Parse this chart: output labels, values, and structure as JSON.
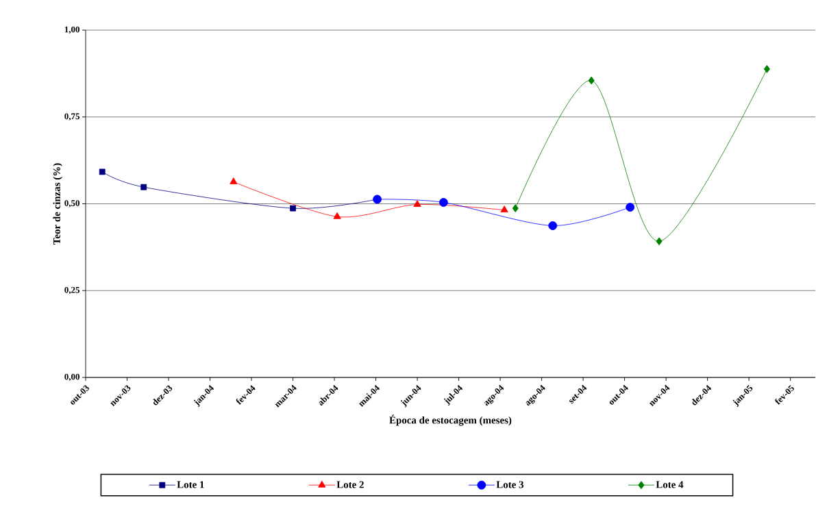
{
  "chart_data": {
    "type": "line",
    "xlabel": "Época de estocagem (meses)",
    "ylabel": "Teor de cinzas (%)",
    "xlim": [
      "2003-10-06",
      "2005-03-17"
    ],
    "xticks": [
      {
        "value": "2003-10-06",
        "label": "out-03"
      },
      {
        "value": "2003-11-05",
        "label": "nov-03"
      },
      {
        "value": "2003-12-05",
        "label": "dez-03"
      },
      {
        "value": "2004-01-04",
        "label": "jan-04"
      },
      {
        "value": "2004-02-03",
        "label": "fev-04"
      },
      {
        "value": "2004-03-04",
        "label": "mar-04"
      },
      {
        "value": "2004-04-03",
        "label": "abr-04"
      },
      {
        "value": "2004-05-03",
        "label": "mai-04"
      },
      {
        "value": "2004-06-02",
        "label": "jun-04"
      },
      {
        "value": "2004-07-02",
        "label": "jul-04"
      },
      {
        "value": "2004-08-01",
        "label": "ago-04"
      },
      {
        "value": "2004-08-31",
        "label": "ago-04"
      },
      {
        "value": "2004-09-30",
        "label": "set-04"
      },
      {
        "value": "2004-10-30",
        "label": "out-04"
      },
      {
        "value": "2004-11-29",
        "label": "nov-04"
      },
      {
        "value": "2004-12-29",
        "label": "dez-04"
      },
      {
        "value": "2005-01-28",
        "label": "jan-05"
      },
      {
        "value": "2005-02-27",
        "label": "fev-05"
      }
    ],
    "ylim": [
      0,
      1
    ],
    "yticks": [
      {
        "value": 0,
        "label": "0,00"
      },
      {
        "value": 0.25,
        "label": "0,25"
      },
      {
        "value": 0.5,
        "label": "0,50"
      },
      {
        "value": 0.75,
        "label": "0,75"
      },
      {
        "value": 1,
        "label": "1,00"
      }
    ],
    "grid": "y",
    "legend": "bottom",
    "line_style": "solid",
    "series": [
      {
        "name": "Lote 1",
        "color": "#000080",
        "marker": "square",
        "x": [
          "2003-10-18",
          "2003-11-17",
          "2004-03-04",
          "2004-05-04"
        ],
        "values": [
          0.592,
          0.548,
          0.487,
          0.513
        ]
      },
      {
        "name": "Lote 2",
        "color": "#ff0000",
        "marker": "triangle",
        "x": [
          "2004-01-21",
          "2004-04-05",
          "2004-06-02",
          "2004-08-04"
        ],
        "values": [
          0.563,
          0.463,
          0.498,
          0.482
        ]
      },
      {
        "name": "Lote 3",
        "color": "#0000ff",
        "marker": "circle",
        "x": [
          "2004-05-04",
          "2004-06-21",
          "2004-09-08",
          "2004-11-03"
        ],
        "values": [
          0.513,
          0.504,
          0.437,
          0.49
        ]
      },
      {
        "name": "Lote 4",
        "color": "#008000",
        "marker": "diamond",
        "x": [
          "2004-08-12",
          "2004-10-06",
          "2004-11-24",
          "2005-02-10"
        ],
        "values": [
          0.487,
          0.855,
          0.392,
          0.888
        ]
      }
    ]
  }
}
